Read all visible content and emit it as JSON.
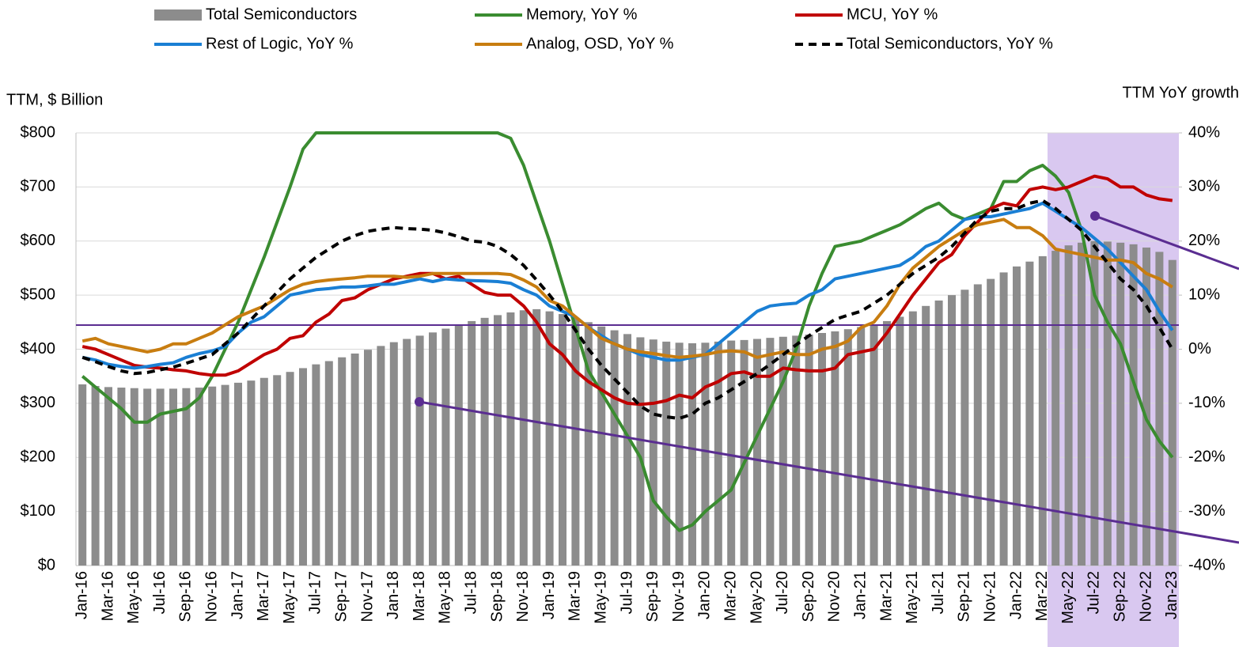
{
  "chart_data": {
    "type": "combo",
    "y_label": "TTM, $ Billion",
    "y2_label": "TTM YoY growth",
    "categories": [
      "Jan-16",
      null,
      "Mar-16",
      null,
      "May-16",
      null,
      "Jul-16",
      null,
      "Sep-16",
      null,
      "Nov-16",
      null,
      "Jan-17",
      null,
      "Mar-17",
      null,
      "May-17",
      null,
      "Jul-17",
      null,
      "Sep-17",
      null,
      "Nov-17",
      null,
      "Jan-18",
      null,
      "Mar-18",
      null,
      "May-18",
      null,
      "Jul-18",
      null,
      "Sep-18",
      null,
      "Nov-18",
      null,
      "Jan-19",
      null,
      "Mar-19",
      null,
      "May-19",
      null,
      "Jul-19",
      null,
      "Sep-19",
      null,
      "Nov-19",
      null,
      "Jan-20",
      null,
      "Mar-20",
      null,
      "May-20",
      null,
      "Jul-20",
      null,
      "Sep-20",
      null,
      "Nov-20",
      null,
      "Jan-21",
      null,
      "Mar-21",
      null,
      "May-21",
      null,
      "Jul-21",
      null,
      "Sep-21",
      null,
      "Nov-21",
      null,
      "Jan-22",
      null,
      "Mar-22",
      null,
      "May-22",
      null,
      "Jul-22",
      null,
      "Sep-22",
      null,
      "Nov-22",
      null,
      "Jan-23"
    ],
    "ylim": [
      0,
      800
    ],
    "yticks": [
      {
        "value": 0,
        "label": "$0"
      },
      {
        "value": 100,
        "label": "$100"
      },
      {
        "value": 200,
        "label": "$200"
      },
      {
        "value": 300,
        "label": "$300"
      },
      {
        "value": 400,
        "label": "$400"
      },
      {
        "value": 500,
        "label": "$500"
      },
      {
        "value": 600,
        "label": "$600"
      },
      {
        "value": 700,
        "label": "$700"
      },
      {
        "value": 800,
        "label": "$800"
      }
    ],
    "y2lim": [
      -40,
      40
    ],
    "y2ticks": [
      {
        "value": -40,
        "label": "-40%"
      },
      {
        "value": -30,
        "label": "-30%"
      },
      {
        "value": -20,
        "label": "-20%"
      },
      {
        "value": -10,
        "label": "-10%"
      },
      {
        "value": 0,
        "label": "0%"
      },
      {
        "value": 10,
        "label": "10%"
      },
      {
        "value": 20,
        "label": "20%"
      },
      {
        "value": 30,
        "label": "30%"
      },
      {
        "value": 40,
        "label": "40%"
      }
    ],
    "series": [
      {
        "name": "Total Semiconductors",
        "type": "bar",
        "axis": "y",
        "color": "#8c8c8c",
        "values": [
          335,
          332,
          330,
          329,
          328,
          327,
          327,
          327,
          328,
          329,
          331,
          334,
          338,
          342,
          347,
          352,
          358,
          365,
          372,
          378,
          385,
          392,
          399,
          406,
          413,
          419,
          425,
          431,
          438,
          445,
          452,
          458,
          463,
          468,
          472,
          474,
          470,
          465,
          458,
          450,
          442,
          435,
          428,
          422,
          418,
          414,
          412,
          411,
          412,
          414,
          416,
          417,
          419,
          421,
          423,
          425,
          427,
          430,
          433,
          437,
          441,
          446,
          452,
          460,
          470,
          480,
          490,
          500,
          510,
          520,
          530,
          542,
          553,
          562,
          572,
          582,
          592,
          597,
          600,
          599,
          597,
          594,
          588,
          580,
          565
        ]
      },
      {
        "name": "Memory, YoY %",
        "type": "line",
        "axis": "y2",
        "color": "#3a8c30",
        "values": [
          -5,
          -7,
          -9,
          -11,
          -13.5,
          -13.5,
          -12,
          -11.5,
          -11,
          -9,
          -5,
          0,
          5,
          11,
          17,
          23.5,
          30,
          37,
          40,
          40,
          40,
          40,
          40,
          40,
          40,
          40,
          40,
          40,
          40,
          40,
          40,
          40,
          40,
          39,
          34,
          27,
          20,
          12,
          4,
          -4,
          -8,
          -12,
          -16,
          -20,
          -28,
          -31,
          -33.5,
          -32.5,
          -30,
          -28,
          -26,
          -21,
          -16,
          -11,
          -6,
          0,
          8,
          14,
          19,
          19.5,
          20,
          21,
          22,
          23,
          24.5,
          26,
          27,
          25,
          24,
          25,
          26,
          31,
          31,
          33,
          34,
          32,
          29,
          22,
          10,
          5,
          1,
          -6,
          -13,
          -17,
          -20
        ]
      },
      {
        "name": "MCU, YoY %",
        "type": "line",
        "axis": "y2",
        "color": "#c00000",
        "values": [
          0.5,
          0,
          -1,
          -2,
          -3,
          -3.3,
          -3.5,
          -3.8,
          -4,
          -4.5,
          -4.8,
          -4.8,
          -4,
          -2.5,
          -1,
          0,
          2,
          2.5,
          5,
          6.5,
          9,
          9.5,
          11,
          12,
          13,
          13.5,
          14,
          14,
          13,
          13.5,
          12,
          10.5,
          10,
          10,
          8,
          5,
          1,
          -1,
          -4,
          -6,
          -7.5,
          -9,
          -10,
          -10.2,
          -10,
          -9.5,
          -8.5,
          -9,
          -7,
          -6,
          -4.5,
          -4.2,
          -5,
          -5,
          -3.5,
          -3.8,
          -4,
          -4,
          -3.5,
          -1,
          -0.5,
          0,
          3,
          6.5,
          10,
          13,
          16,
          17.5,
          21,
          23.5,
          26,
          27,
          26.5,
          29.5,
          30,
          29.5,
          30,
          31,
          32,
          31.5,
          30,
          30,
          28.5,
          27.8,
          27.5
        ]
      },
      {
        "name": "Rest of Logic, YoY %",
        "type": "line",
        "axis": "y2",
        "color": "#1a7fd4",
        "values": [
          -1.5,
          -2,
          -2.8,
          -3.2,
          -3.5,
          -3.2,
          -2.8,
          -2.5,
          -1.5,
          -0.8,
          -0.3,
          0.5,
          3,
          5,
          6,
          8,
          10,
          10.5,
          11,
          11.2,
          11.5,
          11.5,
          11.7,
          12,
          12,
          12.5,
          13,
          12.5,
          13,
          12.8,
          12.7,
          12.6,
          12.5,
          12.2,
          11,
          10,
          8,
          7,
          6,
          4,
          2.5,
          1,
          0,
          -1,
          -1.5,
          -2,
          -2,
          -1.5,
          -1,
          1,
          3,
          5,
          7,
          8,
          8.3,
          8.5,
          10,
          11,
          13,
          13.5,
          14,
          14.5,
          15,
          15.5,
          17,
          19,
          20,
          22,
          24,
          24.5,
          24.5,
          25,
          25.5,
          26,
          27,
          25.5,
          24,
          22.5,
          20.5,
          18.5,
          16,
          13.5,
          11,
          7,
          3.5
        ]
      },
      {
        "name": "Analog, OSD, YoY %",
        "type": "line",
        "axis": "y2",
        "color": "#c87d10",
        "values": [
          1.5,
          2,
          1,
          0.5,
          0,
          -0.5,
          0,
          1,
          1,
          2,
          3,
          4.5,
          6,
          7,
          8,
          9.5,
          11,
          12,
          12.5,
          12.8,
          13,
          13.2,
          13.5,
          13.5,
          13.5,
          13.3,
          13.5,
          14,
          14,
          14,
          14,
          14,
          14,
          13.8,
          12.8,
          11.5,
          9,
          8,
          6,
          4,
          2,
          1,
          0,
          -0.5,
          -0.8,
          -1.2,
          -1.5,
          -1.3,
          -1,
          -0.5,
          -0.3,
          -0.5,
          -1.5,
          -1,
          -0.5,
          -1,
          -1,
          0,
          0.5,
          1.5,
          4,
          5,
          8,
          12,
          15,
          17,
          19,
          20.5,
          22,
          23,
          23.5,
          24,
          22.5,
          22.5,
          21,
          18.5,
          18,
          17.5,
          17,
          16.5,
          16.5,
          16,
          14,
          13,
          11.5
        ]
      },
      {
        "name": "Total Semiconductors, YoY %",
        "type": "line",
        "axis": "y2",
        "color": "#000000",
        "dashed": true,
        "values": [
          -1.5,
          -2.3,
          -3.2,
          -4,
          -4.5,
          -4.3,
          -3.8,
          -3.3,
          -2.6,
          -1.8,
          -1,
          1,
          3,
          5.5,
          8,
          10.5,
          13,
          15,
          17,
          18.5,
          20,
          21,
          21.8,
          22.2,
          22.5,
          22.3,
          22.2,
          22,
          21.5,
          20.8,
          20,
          19.8,
          19,
          17.5,
          15.5,
          12.8,
          10,
          7,
          3.5,
          0,
          -3,
          -5.5,
          -8,
          -10.5,
          -12,
          -12.5,
          -12.8,
          -12,
          -10,
          -9,
          -7.5,
          -6,
          -4.5,
          -2.8,
          -1,
          0.8,
          2.5,
          4,
          5.5,
          6.3,
          7,
          8.5,
          10,
          12,
          14,
          15.5,
          17,
          19,
          21.5,
          24,
          25.5,
          26,
          26,
          27,
          27.5,
          26,
          24,
          22,
          19,
          16,
          13,
          11,
          8,
          4,
          0
        ]
      }
    ]
  }
}
